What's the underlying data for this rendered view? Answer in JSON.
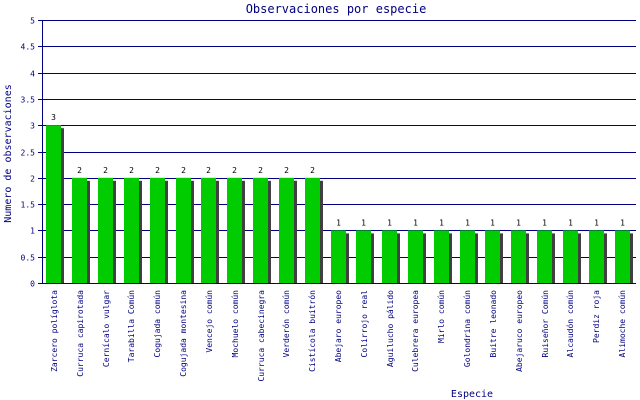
{
  "chart_data": {
    "type": "bar",
    "title": "Observaciones por especie",
    "xlabel": "Especie",
    "ylabel": "Numero de observaciones",
    "ylim": [
      0,
      5
    ],
    "yticks": [
      "0",
      "0.5",
      "1",
      "1.5",
      "2",
      "2.5",
      "3",
      "3.5",
      "4",
      "4.5",
      "5"
    ],
    "grid": true,
    "legend": "none",
    "colors": {
      "bar": "#00cc00",
      "shadow": "#404040",
      "grid": "#000080",
      "text": "#000080"
    },
    "categories": [
      "Zarcero políglota",
      "Curruca capirotada",
      "Cernícalo vulgar",
      "Tarabilla Común",
      "Cogujada común",
      "Cogujada montesina",
      "Vencejo común",
      "Mochuelo común",
      "Curruca cabecinegra",
      "Verderón común",
      "Cistícola buitrón",
      "Abejaro europeo",
      "Colirrojo real",
      "Aguilucho pálido",
      "Culebrera europea",
      "Mirlo común",
      "Golondrina común",
      "Buitre leonado",
      "Abejaruco europeo",
      "Ruiseñor Común",
      "Alcaudón común",
      "Perdiz roja",
      "Alimoche común"
    ],
    "values": [
      3,
      2,
      2,
      2,
      2,
      2,
      2,
      2,
      2,
      2,
      2,
      1,
      1,
      1,
      1,
      1,
      1,
      1,
      1,
      1,
      1,
      1,
      1
    ],
    "value_labels": [
      "3",
      "2",
      "2",
      "2",
      "2",
      "2",
      "2",
      "2",
      "2",
      "2",
      "2",
      "1",
      "1",
      "1",
      "1",
      "1",
      "1",
      "1",
      "1",
      "1",
      "1",
      "1",
      "1"
    ]
  }
}
